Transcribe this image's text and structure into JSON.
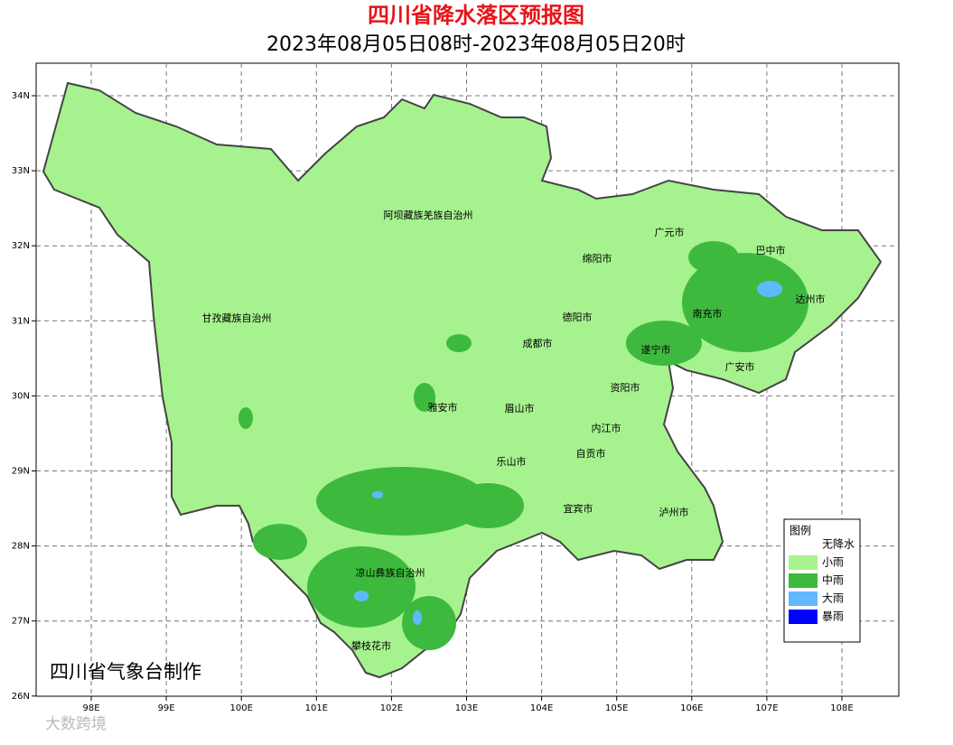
{
  "header": {
    "title": "四川省降水落区预报图",
    "subtitle": "2023年08月05日08时-2023年08月05日20时"
  },
  "axes": {
    "lat_ticks": [
      "34N",
      "33N",
      "32N",
      "31N",
      "30N",
      "29N",
      "28N",
      "27N",
      "26N"
    ],
    "lon_ticks": [
      "98E",
      "99E",
      "100E",
      "101E",
      "102E",
      "103E",
      "104E",
      "105E",
      "106E",
      "107E",
      "108E"
    ]
  },
  "regions": [
    "阿坝藏族羌族自治州",
    "甘孜藏族自治州",
    "广元市",
    "巴中市",
    "绵阳市",
    "达州市",
    "德阳市",
    "南充市",
    "成都市",
    "遂宁市",
    "广安市",
    "雅安市",
    "资阳市",
    "眉山市",
    "内江市",
    "乐山市",
    "自贡市",
    "宜宾市",
    "泸州市",
    "凉山彝族自治州",
    "攀枝花市"
  ],
  "legend": {
    "title": "图例",
    "items": [
      {
        "label": "无降水",
        "color": "#ffffff"
      },
      {
        "label": "小雨",
        "color": "#a6f28f"
      },
      {
        "label": "中雨",
        "color": "#3dba3d"
      },
      {
        "label": "大雨",
        "color": "#61b8ff"
      },
      {
        "label": "暴雨",
        "color": "#0000fe"
      }
    ]
  },
  "credit": "四川省气象台制作",
  "watermark": "大数跨境"
}
